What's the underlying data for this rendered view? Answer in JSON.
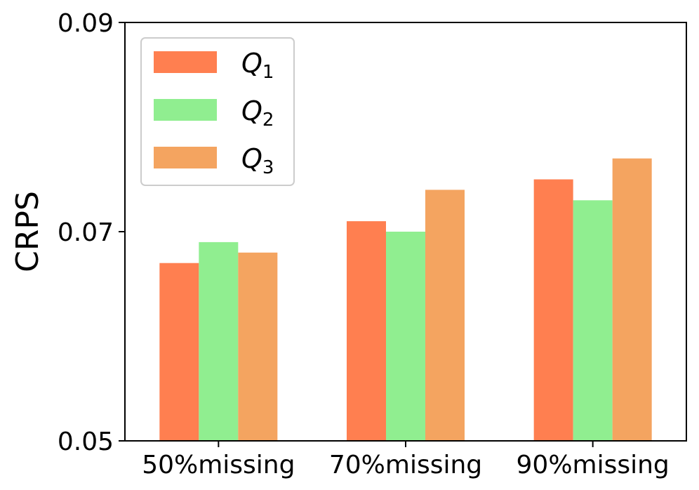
{
  "chart_data": {
    "type": "bar",
    "title": "",
    "xlabel": "",
    "ylabel": "CRPS",
    "categories": [
      "50%missing",
      "70%missing",
      "90%missing"
    ],
    "ylim": [
      0.05,
      0.09
    ],
    "yticks": [
      0.05,
      0.07,
      0.09
    ],
    "ytick_labels": [
      "0.05",
      "0.07",
      "0.09"
    ],
    "legend_position": "top-left",
    "grid": false,
    "series": [
      {
        "name": "Q",
        "subscript": "1",
        "color": "#FF7F50",
        "values": [
          0.067,
          0.071,
          0.075
        ]
      },
      {
        "name": "Q",
        "subscript": "2",
        "color": "#90EE90",
        "values": [
          0.069,
          0.07,
          0.073
        ]
      },
      {
        "name": "Q",
        "subscript": "3",
        "color": "#F4A460",
        "values": [
          0.068,
          0.074,
          0.077
        ]
      }
    ]
  }
}
